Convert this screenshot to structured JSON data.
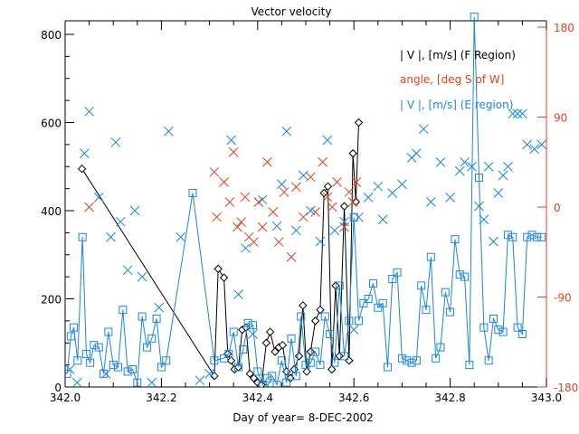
{
  "chart_data": {
    "type": "line",
    "title": "Vector velocity",
    "xlabel": "Day of year= 8-DEC-2002",
    "ylabel": "",
    "xlim": [
      342.0,
      343.0
    ],
    "ylim": [
      0,
      840
    ],
    "y2lim": [
      -180,
      180
    ],
    "x_ticks": [
      "342.0",
      "342.2",
      "342.4",
      "342.6",
      "342.8",
      "343.0"
    ],
    "x_tick_values": [
      342.0,
      342.2,
      342.4,
      342.6,
      342.8,
      343.0
    ],
    "y_ticks": [
      "0",
      "200",
      "400",
      "600",
      "800"
    ],
    "y_tick_values": [
      0,
      200,
      400,
      600,
      800
    ],
    "y2_ticks": [
      "-180",
      "-90",
      "0",
      "90",
      "180"
    ],
    "y2_tick_values": [
      -180,
      -90,
      0,
      90,
      180
    ],
    "grid": false,
    "legend_position": "top-right",
    "colors": {
      "axis": "#000000",
      "f_region": "#000000",
      "angle": "#e8401c",
      "e_region": "#1a86e0"
    },
    "series": [
      {
        "name": "| V |, [m/s] (F Region)",
        "axis": "left",
        "marker": "diamond",
        "line": true,
        "x": [
          342.035,
          342.31,
          342.318,
          342.33,
          342.338,
          342.345,
          342.352,
          342.36,
          342.368,
          342.376,
          342.384,
          342.392,
          342.4,
          342.408,
          342.418,
          342.426,
          342.436,
          342.444,
          342.452,
          342.46,
          342.468,
          342.476,
          342.486,
          342.494,
          342.502,
          342.51,
          342.52,
          342.53,
          342.538,
          342.546,
          342.554,
          342.562,
          342.57,
          342.58,
          342.59,
          342.598,
          342.604,
          342.61
        ],
        "y": [
          495,
          25,
          268,
          248,
          75,
          60,
          40,
          45,
          130,
          135,
          30,
          20,
          10,
          5,
          100,
          125,
          80,
          90,
          95,
          35,
          20,
          40,
          70,
          185,
          35,
          80,
          150,
          175,
          440,
          455,
          40,
          230,
          70,
          410,
          60,
          530,
          420,
          600
        ]
      },
      {
        "name": "angle, [deg S of W]",
        "axis": "right",
        "marker": "x",
        "line": false,
        "x": [
          342.05,
          342.31,
          342.315,
          342.33,
          342.342,
          342.35,
          342.358,
          342.366,
          342.374,
          342.382,
          342.392,
          342.402,
          342.41,
          342.42,
          342.432,
          342.444,
          342.455,
          342.47,
          342.48,
          342.495,
          342.51,
          342.52,
          342.535,
          342.545,
          342.555,
          342.565,
          342.58,
          342.59,
          342.598,
          342.605
        ],
        "y": [
          0,
          35,
          -10,
          25,
          5,
          55,
          -20,
          -15,
          10,
          -30,
          -35,
          5,
          -20,
          45,
          -5,
          -35,
          15,
          -50,
          20,
          -10,
          30,
          -5,
          45,
          10,
          0,
          25,
          -20,
          15,
          5,
          25
        ]
      },
      {
        "name": "| V |, [m/s] (E region)",
        "axis": "left",
        "marker": "square",
        "line": true,
        "x": [
          342.004,
          342.012,
          342.018,
          342.026,
          342.036,
          342.044,
          342.052,
          342.06,
          342.07,
          342.08,
          342.09,
          342.1,
          342.11,
          342.12,
          342.13,
          342.14,
          342.15,
          342.16,
          342.17,
          342.18,
          342.19,
          342.2,
          342.21,
          342.265,
          342.31,
          342.33,
          342.34,
          342.35,
          342.36,
          342.37,
          342.38,
          342.39,
          342.4,
          342.41,
          342.42,
          342.43,
          342.44,
          342.45,
          342.46,
          342.47,
          342.48,
          342.49,
          342.5,
          342.51,
          342.52,
          342.53,
          342.54,
          342.55,
          342.56,
          342.57,
          342.58,
          342.59,
          342.6,
          342.61,
          342.62,
          342.63,
          342.64,
          342.65,
          342.66,
          342.67,
          342.68,
          342.69,
          342.7,
          342.71,
          342.72,
          342.73,
          342.74,
          342.75,
          342.76,
          342.77,
          342.78,
          342.79,
          342.8,
          342.81,
          342.82,
          342.83,
          342.84,
          342.85,
          342.86,
          342.87,
          342.88,
          342.89,
          342.9,
          342.91,
          342.92,
          342.93,
          342.94,
          342.95,
          342.96,
          342.97,
          342.98,
          342.99
        ],
        "y": [
          30,
          115,
          135,
          60,
          340,
          75,
          55,
          95,
          90,
          30,
          125,
          50,
          45,
          175,
          35,
          40,
          10,
          160,
          90,
          110,
          155,
          45,
          60,
          440,
          60,
          65,
          75,
          125,
          45,
          85,
          145,
          140,
          35,
          5,
          20,
          25,
          5,
          60,
          10,
          110,
          25,
          160,
          50,
          55,
          80,
          50,
          160,
          120,
          55,
          230,
          70,
          150,
          385,
          150,
          190,
          200,
          235,
          180,
          190,
          45,
          245,
          260,
          65,
          60,
          55,
          60,
          230,
          175,
          295,
          65,
          90,
          215,
          170,
          335,
          255,
          250,
          50,
          840,
          475,
          135,
          60,
          155,
          130,
          125,
          345,
          340,
          135,
          120,
          340,
          345,
          340,
          340
        ]
      },
      {
        "name": "| V |, [m/s] (E region) scatter",
        "axis": "left",
        "marker": "x",
        "line": false,
        "x": [
          342.01,
          342.025,
          342.04,
          342.05,
          342.07,
          342.085,
          342.095,
          342.105,
          342.115,
          342.13,
          342.145,
          342.16,
          342.18,
          342.195,
          342.215,
          342.24,
          342.28,
          342.3,
          342.345,
          342.36,
          342.375,
          342.39,
          342.41,
          342.42,
          342.44,
          342.45,
          342.46,
          342.48,
          342.495,
          342.51,
          342.53,
          342.545,
          342.56,
          342.58,
          342.6,
          342.61,
          342.63,
          342.65,
          342.66,
          342.68,
          342.7,
          342.72,
          342.73,
          342.745,
          342.76,
          342.78,
          342.8,
          342.82,
          342.83,
          342.845,
          342.86,
          342.87,
          342.88,
          342.89,
          342.9,
          342.91,
          342.92,
          342.93,
          342.94,
          342.95,
          342.96,
          342.975,
          342.99
        ],
        "y": [
          40,
          10,
          530,
          625,
          430,
          30,
          340,
          555,
          375,
          265,
          400,
          250,
          10,
          180,
          580,
          340,
          15,
          30,
          560,
          210,
          315,
          120,
          425,
          5,
          365,
          460,
          580,
          355,
          480,
          400,
          330,
          560,
          355,
          375,
          130,
          385,
          430,
          455,
          380,
          440,
          460,
          520,
          530,
          585,
          420,
          510,
          430,
          490,
          510,
          500,
          410,
          380,
          500,
          330,
          440,
          480,
          500,
          620,
          620,
          620,
          550,
          540,
          550
        ]
      }
    ]
  }
}
